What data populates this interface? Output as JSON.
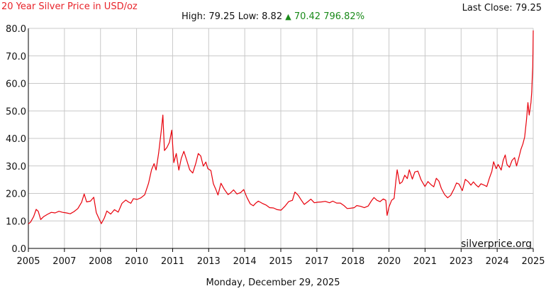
{
  "header": {
    "title": "20 Year Silver Price in USD/oz",
    "last_close_label": "Last Close:",
    "last_close_value": "79.25",
    "high_label": "High:",
    "high_value": "79.25",
    "low_label": "Low:",
    "low_value": "8.82",
    "change_arrow": "▲",
    "change_value": "70.42",
    "change_percent": "796.82%"
  },
  "footer": {
    "watermark": "silverprice.org",
    "date": "Monday, December 29, 2025"
  },
  "colors": {
    "line": "#e8000b",
    "grid": "#c8c8c8",
    "axis": "#000000",
    "up": "#1a8a1a",
    "title": "#e8232a"
  },
  "chart_data": {
    "type": "line",
    "title": "20 Year Silver Price in USD/oz",
    "xlabel": "",
    "ylabel": "",
    "ylim": [
      0,
      80
    ],
    "yticks": [
      "0.0",
      "10.0",
      "20.0",
      "30.0",
      "40.0",
      "50.0",
      "60.0",
      "70.0",
      "80.0"
    ],
    "xlim": [
      2005.99,
      2025.99
    ],
    "xtick_labels": [
      "2005",
      "2007",
      "2008",
      "2010",
      "2011",
      "2013",
      "2014",
      "2015",
      "2017",
      "2018",
      "2020",
      "2021",
      "2023",
      "2024",
      "2025"
    ],
    "grid": true,
    "series": [
      {
        "name": "",
        "points": [
          [
            2005.99,
            8.9
          ],
          [
            2006.08,
            9.6
          ],
          [
            2006.2,
            11.6
          ],
          [
            2006.3,
            14.2
          ],
          [
            2006.38,
            13.5
          ],
          [
            2006.48,
            10.5
          ],
          [
            2006.6,
            11.6
          ],
          [
            2006.75,
            12.4
          ],
          [
            2006.9,
            13.1
          ],
          [
            2007.05,
            12.9
          ],
          [
            2007.2,
            13.5
          ],
          [
            2007.35,
            13.1
          ],
          [
            2007.5,
            12.9
          ],
          [
            2007.65,
            12.6
          ],
          [
            2007.8,
            13.4
          ],
          [
            2007.95,
            14.5
          ],
          [
            2008.1,
            16.8
          ],
          [
            2008.2,
            19.8
          ],
          [
            2008.3,
            16.9
          ],
          [
            2008.45,
            17.2
          ],
          [
            2008.58,
            18.6
          ],
          [
            2008.68,
            13.0
          ],
          [
            2008.78,
            11.0
          ],
          [
            2008.88,
            9.0
          ],
          [
            2009.0,
            11.1
          ],
          [
            2009.1,
            13.6
          ],
          [
            2009.25,
            12.5
          ],
          [
            2009.4,
            14.1
          ],
          [
            2009.55,
            13.2
          ],
          [
            2009.7,
            16.4
          ],
          [
            2009.85,
            17.6
          ],
          [
            2009.95,
            16.9
          ],
          [
            2010.05,
            16.4
          ],
          [
            2010.15,
            18.1
          ],
          [
            2010.3,
            17.8
          ],
          [
            2010.45,
            18.4
          ],
          [
            2010.6,
            19.5
          ],
          [
            2010.75,
            23.7
          ],
          [
            2010.87,
            28.6
          ],
          [
            2010.97,
            30.8
          ],
          [
            2011.05,
            28.5
          ],
          [
            2011.15,
            34.6
          ],
          [
            2011.25,
            42.5
          ],
          [
            2011.32,
            48.5
          ],
          [
            2011.38,
            35.6
          ],
          [
            2011.48,
            36.7
          ],
          [
            2011.58,
            38.6
          ],
          [
            2011.67,
            43.0
          ],
          [
            2011.75,
            31.2
          ],
          [
            2011.85,
            34.5
          ],
          [
            2011.95,
            28.5
          ],
          [
            2012.05,
            32.8
          ],
          [
            2012.15,
            35.3
          ],
          [
            2012.25,
            32.4
          ],
          [
            2012.38,
            28.6
          ],
          [
            2012.5,
            27.4
          ],
          [
            2012.62,
            30.8
          ],
          [
            2012.72,
            34.5
          ],
          [
            2012.82,
            33.6
          ],
          [
            2012.92,
            29.9
          ],
          [
            2013.02,
            31.4
          ],
          [
            2013.1,
            29.0
          ],
          [
            2013.22,
            28.3
          ],
          [
            2013.32,
            23.5
          ],
          [
            2013.42,
            21.4
          ],
          [
            2013.5,
            19.4
          ],
          [
            2013.62,
            23.7
          ],
          [
            2013.75,
            21.5
          ],
          [
            2013.9,
            19.6
          ],
          [
            2014.0,
            20.2
          ],
          [
            2014.12,
            21.3
          ],
          [
            2014.25,
            19.8
          ],
          [
            2014.4,
            20.3
          ],
          [
            2014.52,
            21.4
          ],
          [
            2014.65,
            18.5
          ],
          [
            2014.78,
            16.2
          ],
          [
            2014.9,
            15.5
          ],
          [
            2015.0,
            16.5
          ],
          [
            2015.1,
            17.2
          ],
          [
            2015.25,
            16.4
          ],
          [
            2015.4,
            15.8
          ],
          [
            2015.55,
            14.8
          ],
          [
            2015.7,
            14.7
          ],
          [
            2015.85,
            14.1
          ],
          [
            2016.0,
            13.9
          ],
          [
            2016.15,
            15.3
          ],
          [
            2016.3,
            17.0
          ],
          [
            2016.45,
            17.5
          ],
          [
            2016.55,
            20.5
          ],
          [
            2016.68,
            19.3
          ],
          [
            2016.8,
            17.6
          ],
          [
            2016.92,
            16.0
          ],
          [
            2017.05,
            16.9
          ],
          [
            2017.18,
            17.9
          ],
          [
            2017.32,
            16.6
          ],
          [
            2017.45,
            16.8
          ],
          [
            2017.6,
            16.9
          ],
          [
            2017.75,
            17.1
          ],
          [
            2017.92,
            16.6
          ],
          [
            2018.05,
            17.2
          ],
          [
            2018.2,
            16.5
          ],
          [
            2018.35,
            16.5
          ],
          [
            2018.5,
            15.5
          ],
          [
            2018.62,
            14.5
          ],
          [
            2018.75,
            14.6
          ],
          [
            2018.9,
            14.8
          ],
          [
            2019.0,
            15.6
          ],
          [
            2019.15,
            15.3
          ],
          [
            2019.3,
            14.8
          ],
          [
            2019.45,
            15.4
          ],
          [
            2019.58,
            17.3
          ],
          [
            2019.68,
            18.5
          ],
          [
            2019.8,
            17.5
          ],
          [
            2019.92,
            17.0
          ],
          [
            2020.05,
            18.0
          ],
          [
            2020.15,
            17.5
          ],
          [
            2020.2,
            12.0
          ],
          [
            2020.28,
            15.2
          ],
          [
            2020.38,
            17.5
          ],
          [
            2020.48,
            18.2
          ],
          [
            2020.55,
            24.6
          ],
          [
            2020.6,
            28.6
          ],
          [
            2020.7,
            23.5
          ],
          [
            2020.8,
            24.2
          ],
          [
            2020.9,
            26.6
          ],
          [
            2021.0,
            25.4
          ],
          [
            2021.08,
            28.6
          ],
          [
            2021.2,
            25.2
          ],
          [
            2021.3,
            27.8
          ],
          [
            2021.42,
            28.1
          ],
          [
            2021.55,
            24.9
          ],
          [
            2021.7,
            22.5
          ],
          [
            2021.82,
            24.3
          ],
          [
            2021.95,
            23.1
          ],
          [
            2022.05,
            22.4
          ],
          [
            2022.15,
            25.5
          ],
          [
            2022.25,
            24.5
          ],
          [
            2022.35,
            21.8
          ],
          [
            2022.48,
            19.6
          ],
          [
            2022.6,
            18.4
          ],
          [
            2022.72,
            19.3
          ],
          [
            2022.85,
            21.6
          ],
          [
            2022.95,
            23.8
          ],
          [
            2023.05,
            23.4
          ],
          [
            2023.18,
            21.0
          ],
          [
            2023.3,
            25.1
          ],
          [
            2023.42,
            24.2
          ],
          [
            2023.52,
            23.0
          ],
          [
            2023.62,
            24.2
          ],
          [
            2023.72,
            23.1
          ],
          [
            2023.82,
            22.3
          ],
          [
            2023.92,
            23.5
          ],
          [
            2024.05,
            23.0
          ],
          [
            2024.15,
            22.5
          ],
          [
            2024.25,
            25.5
          ],
          [
            2024.35,
            28.0
          ],
          [
            2024.42,
            31.5
          ],
          [
            2024.52,
            29.0
          ],
          [
            2024.6,
            30.5
          ],
          [
            2024.72,
            28.5
          ],
          [
            2024.8,
            32.0
          ],
          [
            2024.88,
            34.0
          ],
          [
            2024.95,
            30.5
          ],
          [
            2025.05,
            29.5
          ],
          [
            2025.15,
            32.0
          ],
          [
            2025.25,
            33.0
          ],
          [
            2025.33,
            30.0
          ],
          [
            2025.42,
            33.0
          ],
          [
            2025.5,
            36.0
          ],
          [
            2025.58,
            38.0
          ],
          [
            2025.65,
            40.5
          ],
          [
            2025.72,
            46.5
          ],
          [
            2025.78,
            53.0
          ],
          [
            2025.83,
            48.5
          ],
          [
            2025.87,
            51.0
          ],
          [
            2025.9,
            53.0
          ],
          [
            2025.93,
            57.0
          ],
          [
            2025.95,
            62.0
          ],
          [
            2025.97,
            66.0
          ],
          [
            2025.98,
            71.0
          ],
          [
            2025.99,
            79.25
          ]
        ]
      }
    ]
  }
}
